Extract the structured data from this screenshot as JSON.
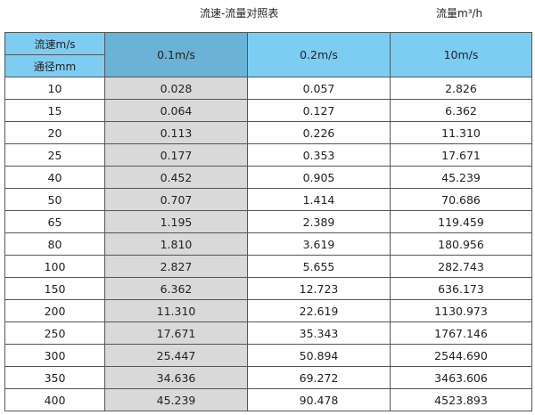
{
  "title": "流速-流量对照表",
  "unit": "流量m³/h",
  "header": {
    "speed_label": "流速m/s",
    "diameter_label": "通径mm",
    "columns": [
      "0.1m/s",
      "0.2m/s",
      "10m/s"
    ]
  },
  "colors": {
    "header": "#7dcdf3",
    "header_highlight": "#6ab2d6",
    "column_highlight": "#d9d9d9"
  },
  "rows": [
    [
      "10",
      "0.028",
      "0.057",
      "2.826"
    ],
    [
      "15",
      "0.064",
      "0.127",
      "6.362"
    ],
    [
      "20",
      "0.113",
      "0.226",
      "11.310"
    ],
    [
      "25",
      "0.177",
      "0.353",
      "17.671"
    ],
    [
      "40",
      "0.452",
      "0.905",
      "45.239"
    ],
    [
      "50",
      "0.707",
      "1.414",
      "70.686"
    ],
    [
      "65",
      "1.195",
      "2.389",
      "119.459"
    ],
    [
      "80",
      "1.810",
      "3.619",
      "180.956"
    ],
    [
      "100",
      "2.827",
      "5.655",
      "282.743"
    ],
    [
      "150",
      "6.362",
      "12.723",
      "636.173"
    ],
    [
      "200",
      "11.310",
      "22.619",
      "1130.973"
    ],
    [
      "250",
      "17.671",
      "35.343",
      "1767.146"
    ],
    [
      "300",
      "25.447",
      "50.894",
      "2544.690"
    ],
    [
      "350",
      "34.636",
      "69.272",
      "3463.606"
    ],
    [
      "400",
      "45.239",
      "90.478",
      "4523.893"
    ]
  ]
}
